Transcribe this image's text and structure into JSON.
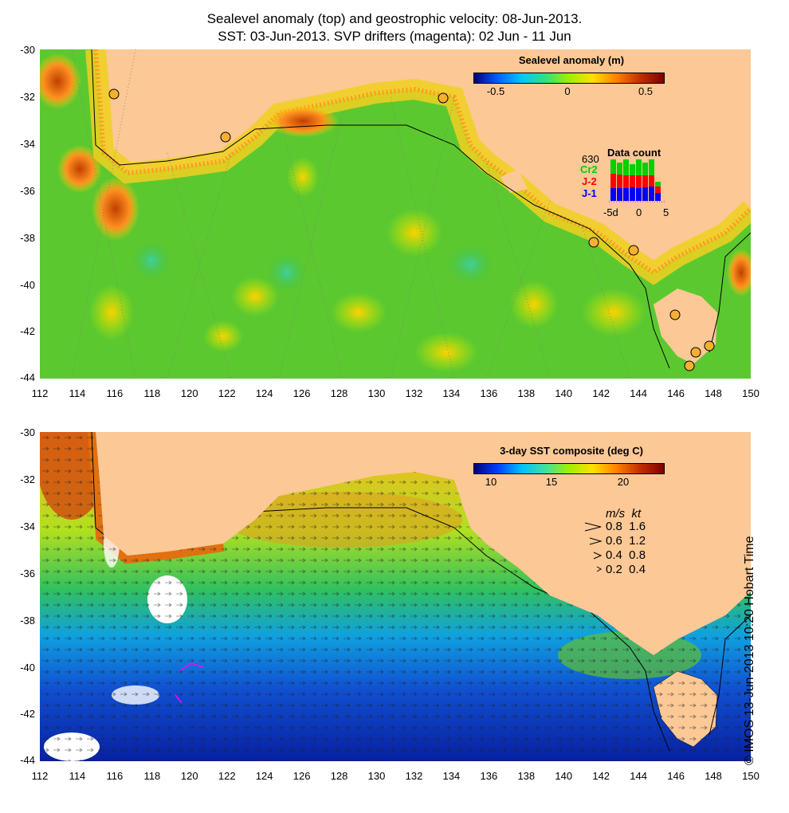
{
  "title": {
    "line1": "Sealevel anomaly (top) and geostrophic velocity: 08-Jun-2013.",
    "line2": "SST: 03-Jun-2013. SVP drifters (magenta): 02 Jun - 11 Jun"
  },
  "axes": {
    "lat_labels": [
      "-30",
      "-32",
      "-34",
      "-36",
      "-38",
      "-40",
      "-42",
      "-44"
    ],
    "lon_labels": [
      "112",
      "114",
      "116",
      "118",
      "120",
      "122",
      "124",
      "126",
      "128",
      "130",
      "132",
      "134",
      "136",
      "138",
      "140",
      "142",
      "144",
      "146",
      "148",
      "150"
    ]
  },
  "top_panel": {
    "colorbar": {
      "title": "Sealevel anomaly (m)",
      "ticks": [
        "-0.5",
        "0",
        "0.5"
      ],
      "colors": [
        "#000080",
        "#0060ff",
        "#00c8ff",
        "#30e080",
        "#a0f000",
        "#ffe000",
        "#ff8000",
        "#c03000",
        "#800000"
      ]
    },
    "data_count": {
      "title": "Data count",
      "max": "630",
      "series": [
        {
          "name": "Cr2",
          "color": "#00d000"
        },
        {
          "name": "J-2",
          "color": "#ff0000"
        },
        {
          "name": "J-1",
          "color": "#0000ff"
        }
      ],
      "xticks": [
        "-5d",
        "0",
        "5"
      ]
    }
  },
  "bottom_panel": {
    "colorbar": {
      "title": "3-day SST composite (deg C)",
      "ticks": [
        "10",
        "15",
        "20"
      ],
      "colors": [
        "#000080",
        "#0040ff",
        "#00c0ff",
        "#40e0a0",
        "#a0f000",
        "#ffe000",
        "#ff8000",
        "#c03000",
        "#800000"
      ]
    },
    "velocity_legend": {
      "header": "m/s  kt",
      "rows": [
        "0.8  1.6",
        "0.6  1.2",
        "0.4  0.8",
        "0.2  0.4"
      ]
    }
  },
  "credit": "© IMOS 13-Jun-2013 10:20 Hobart Time",
  "colors": {
    "land": "#fbc896",
    "ocean_top": "#60d030",
    "ocean_bottom_warm": "#a0e040",
    "ocean_bottom_cold": "#1040c0",
    "drifter": "#ff00ff"
  }
}
